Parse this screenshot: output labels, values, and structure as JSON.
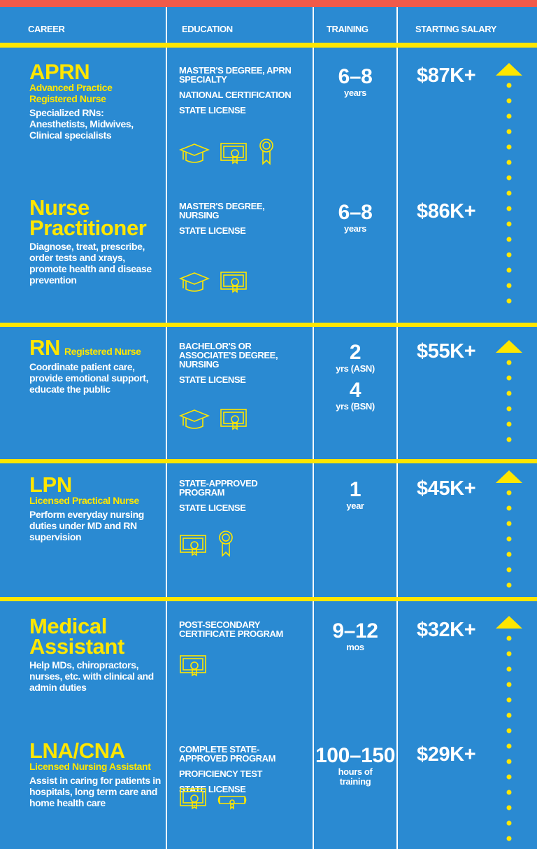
{
  "header": {
    "columns": [
      "CAREER",
      "EDUCATION",
      "TRAINING",
      "STARTING SALARY"
    ]
  },
  "rows": [
    {
      "title": "APRN",
      "subtitle": "Advanced Practice Registered Nurse",
      "description": "Specialized RNs: Anesthetists, Midwives, Clinical specialists",
      "education": [
        "MASTER'S DEGREE, APRN SPECIALTY",
        "NATIONAL CERTIFICATION",
        "STATE LICENSE"
      ],
      "training": [
        {
          "value": "6–8",
          "unit": "years"
        }
      ],
      "salary": "$87K+"
    },
    {
      "title": "Nurse Practitioner",
      "description": "Diagnose, treat, prescribe, order tests and xrays, promote health and disease prevention",
      "education": [
        "MASTER'S DEGREE, NURSING",
        "STATE LICENSE"
      ],
      "training": [
        {
          "value": "6–8",
          "unit": "years"
        }
      ],
      "salary": "$86K+"
    },
    {
      "title": "RN",
      "subtitle": "Registered Nurse",
      "description": "Coordinate patient care, provide emotional support, educate the public",
      "education": [
        "BACHELOR'S OR ASSOCIATE'S DEGREE, NURSING",
        "STATE LICENSE"
      ],
      "training": [
        {
          "value": "2",
          "unit": "yrs (ASN)"
        },
        {
          "value": "4",
          "unit": "yrs (BSN)"
        }
      ],
      "salary": "$55K+"
    },
    {
      "title": "LPN",
      "subtitle": "Licensed Practical Nurse",
      "description": "Perform everyday nursing duties under MD and RN supervision",
      "education": [
        "STATE-APPROVED PROGRAM",
        "STATE LICENSE"
      ],
      "training": [
        {
          "value": "1",
          "unit": "year"
        }
      ],
      "salary": "$45K+"
    },
    {
      "title": "Medical Assistant",
      "description": "Help MDs, chiropractors, nurses, etc. with clinical and admin duties",
      "education": [
        "POST-SECONDARY CERTIFICATE PROGRAM"
      ],
      "training": [
        {
          "value": "9–12",
          "unit": "mos"
        }
      ],
      "salary": "$32K+"
    },
    {
      "title": "LNA/CNA",
      "subtitle": "Licensed Nursing Assistant",
      "description": "Assist in caring for patients in hospitals, long term care and home health care",
      "education": [
        "COMPLETE STATE-APPROVED PROGRAM",
        "PROFICIENCY TEST",
        "STATE LICENSE"
      ],
      "training": [
        {
          "value": "100–150",
          "unit": "hours of training"
        }
      ],
      "salary": "$29K+"
    }
  ]
}
